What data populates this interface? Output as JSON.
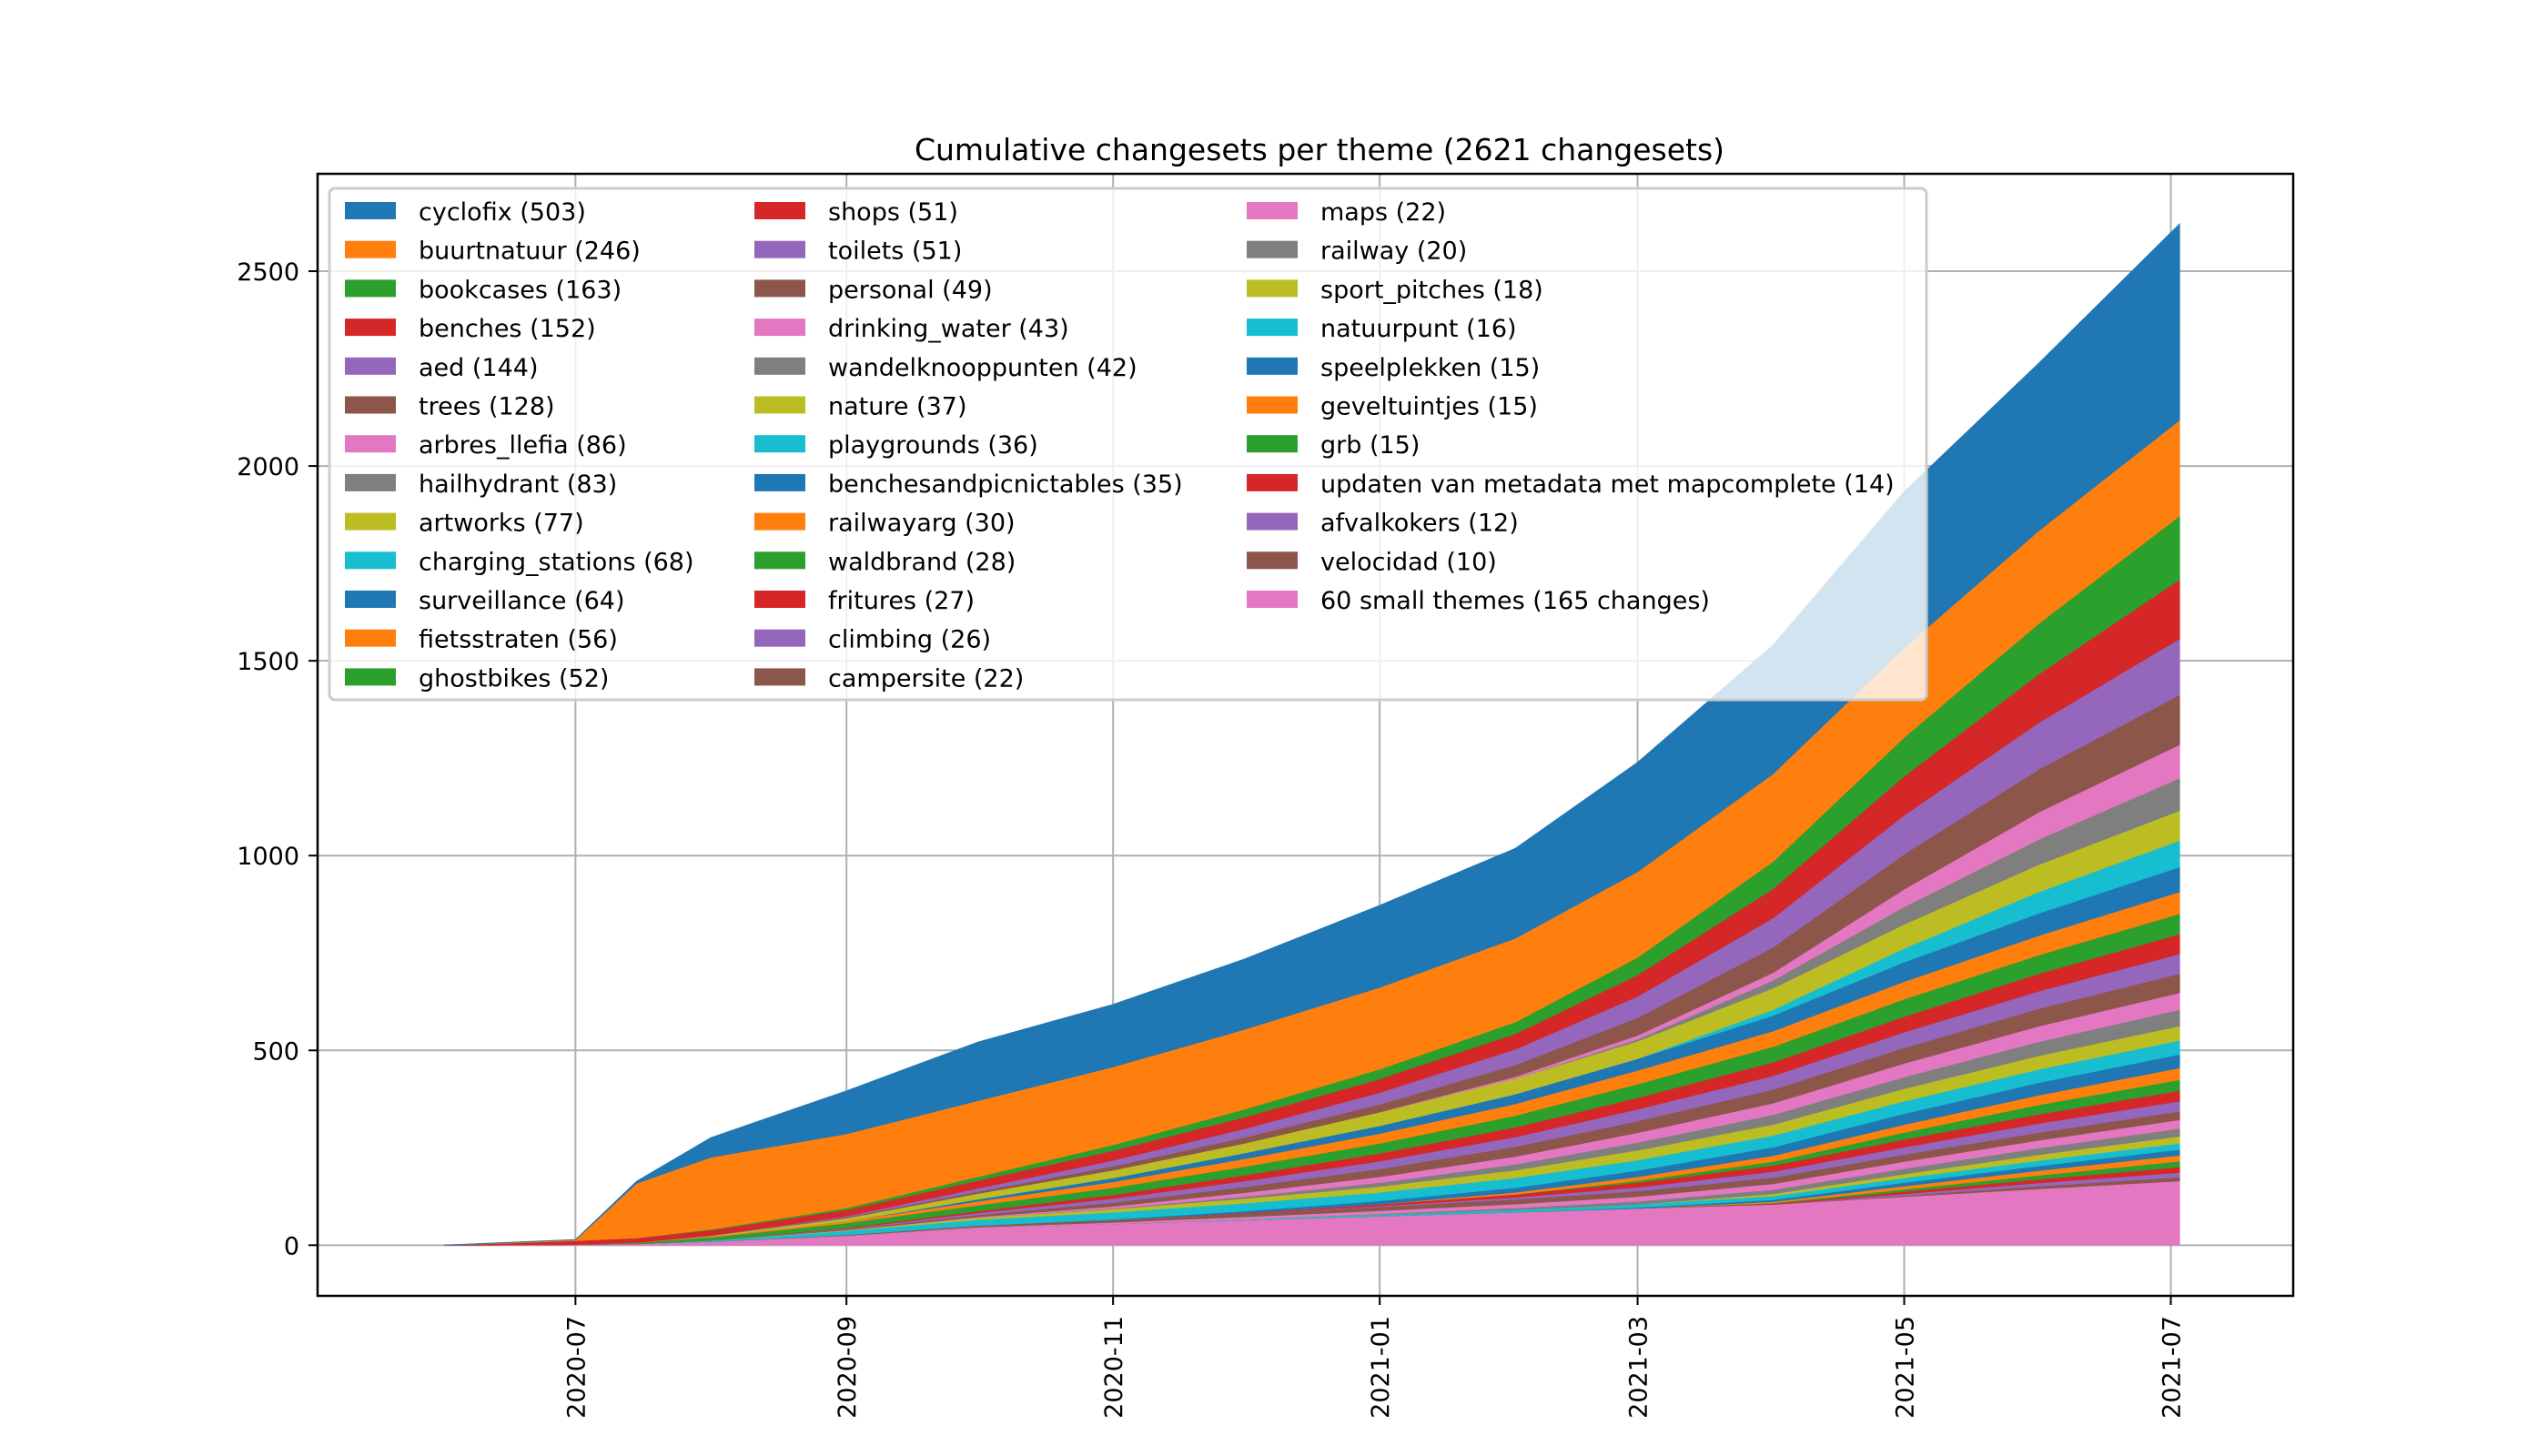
{
  "chart_data": {
    "type": "area",
    "stacked": true,
    "title": "Cumulative changesets per theme (2621 changesets)",
    "xlabel": "",
    "ylabel": "",
    "ylim": [
      -130,
      2750
    ],
    "xlim": [
      "2020-05-03",
      "2021-07-29"
    ],
    "grid": true,
    "legend_position": "top-left",
    "legend_columns": 3,
    "yticks": [
      0,
      500,
      1000,
      1500,
      2000,
      2500
    ],
    "ytick_labels": [
      "0",
      "500",
      "1000",
      "1500",
      "2000",
      "2500"
    ],
    "xticks": [
      "2020-07-01",
      "2020-09-01",
      "2020-11-01",
      "2021-01-01",
      "2021-03-01",
      "2021-05-01",
      "2021-07-01"
    ],
    "xtick_labels": [
      "2020-07",
      "2020-09",
      "2020-11",
      "2021-01",
      "2021-03",
      "2021-05",
      "2021-07"
    ],
    "x": [
      "2020-06-01",
      "2020-07-01",
      "2020-07-15",
      "2020-08-01",
      "2020-09-01",
      "2020-10-01",
      "2020-11-01",
      "2020-12-01",
      "2021-01-01",
      "2021-02-01",
      "2021-03-01",
      "2021-04-01",
      "2021-05-01",
      "2021-06-01",
      "2021-07-03"
    ],
    "series": [
      {
        "name": "cyclofix",
        "label": "cyclofix (503)",
        "color": "#1f77b4",
        "values": [
          0,
          0,
          5,
          50,
          110,
          150,
          160,
          180,
          210,
          230,
          280,
          330,
          400,
          430,
          503
        ]
      },
      {
        "name": "buurtnatuur",
        "label": "buurtnatuur (246)",
        "color": "#ff7f0e",
        "values": [
          0,
          2,
          140,
          185,
          190,
          195,
          200,
          205,
          210,
          215,
          220,
          225,
          230,
          238,
          246
        ]
      },
      {
        "name": "bookcases",
        "label": "bookcases (163)",
        "color": "#2ca02c",
        "values": [
          0,
          0,
          0,
          2,
          5,
          10,
          15,
          20,
          25,
          30,
          45,
          70,
          100,
          130,
          163
        ]
      },
      {
        "name": "benches",
        "label": "benches (152)",
        "color": "#d62728",
        "values": [
          0,
          10,
          12,
          14,
          16,
          20,
          25,
          30,
          35,
          40,
          55,
          75,
          100,
          125,
          152
        ]
      },
      {
        "name": "aed",
        "label": "aed (144)",
        "color": "#9467bd",
        "values": [
          0,
          0,
          0,
          0,
          3,
          8,
          15,
          22,
          30,
          40,
          55,
          75,
          100,
          120,
          144
        ]
      },
      {
        "name": "trees",
        "label": "trees (128)",
        "color": "#8c564b",
        "values": [
          0,
          0,
          0,
          0,
          2,
          5,
          10,
          15,
          20,
          30,
          45,
          65,
          90,
          110,
          128
        ]
      },
      {
        "name": "arbres_llefia",
        "label": "arbres_llefia (86)",
        "color": "#e377c2",
        "values": [
          0,
          0,
          0,
          0,
          0,
          0,
          0,
          0,
          0,
          5,
          10,
          20,
          45,
          70,
          86
        ]
      },
      {
        "name": "hailhydrant",
        "label": "hailhydrant (83)",
        "color": "#7f7f7f",
        "values": [
          0,
          0,
          0,
          0,
          0,
          0,
          0,
          0,
          0,
          0,
          5,
          20,
          45,
          65,
          83
        ]
      },
      {
        "name": "artworks",
        "label": "artworks (77)",
        "color": "#bcbd22",
        "values": [
          0,
          0,
          0,
          2,
          8,
          15,
          20,
          25,
          35,
          40,
          45,
          55,
          62,
          70,
          77
        ]
      },
      {
        "name": "charging_stations",
        "label": "charging_stations (68)",
        "color": "#17becf",
        "values": [
          0,
          0,
          0,
          0,
          0,
          0,
          0,
          0,
          0,
          0,
          0,
          15,
          35,
          55,
          68
        ]
      },
      {
        "name": "surveillance",
        "label": "surveillance (64)",
        "color": "#1f77b4",
        "values": [
          0,
          0,
          0,
          0,
          0,
          5,
          10,
          15,
          20,
          25,
          30,
          40,
          50,
          57,
          64
        ]
      },
      {
        "name": "fietsstraten",
        "label": "fietsstraten (56)",
        "color": "#ff7f0e",
        "values": [
          0,
          0,
          0,
          2,
          5,
          10,
          15,
          20,
          25,
          30,
          35,
          40,
          45,
          50,
          56
        ]
      },
      {
        "name": "ghostbikes",
        "label": "ghostbikes (52)",
        "color": "#2ca02c",
        "values": [
          0,
          0,
          3,
          8,
          12,
          15,
          18,
          22,
          26,
          30,
          35,
          40,
          45,
          48,
          52
        ]
      },
      {
        "name": "shops",
        "label": "shops (51)",
        "color": "#d62728",
        "values": [
          0,
          0,
          0,
          0,
          2,
          5,
          10,
          15,
          20,
          25,
          30,
          35,
          40,
          45,
          51
        ]
      },
      {
        "name": "toilets",
        "label": "toilets (51)",
        "color": "#9467bd",
        "values": [
          0,
          0,
          0,
          0,
          2,
          5,
          10,
          15,
          20,
          25,
          30,
          35,
          40,
          45,
          51
        ]
      },
      {
        "name": "personal",
        "label": "personal (49)",
        "color": "#8c564b",
        "values": [
          0,
          0,
          0,
          0,
          2,
          5,
          10,
          15,
          20,
          25,
          30,
          35,
          40,
          45,
          49
        ]
      },
      {
        "name": "drinking_water",
        "label": "drinking_water (43)",
        "color": "#e377c2",
        "values": [
          0,
          0,
          0,
          0,
          0,
          2,
          5,
          10,
          15,
          20,
          25,
          30,
          35,
          40,
          43
        ]
      },
      {
        "name": "wandelknooppunten",
        "label": "wandelknooppunten (42)",
        "color": "#7f7f7f",
        "values": [
          0,
          0,
          0,
          0,
          0,
          0,
          2,
          5,
          10,
          15,
          20,
          25,
          30,
          36,
          42
        ]
      },
      {
        "name": "nature",
        "label": "nature (37)",
        "color": "#bcbd22",
        "values": [
          0,
          0,
          0,
          0,
          2,
          5,
          8,
          12,
          15,
          20,
          25,
          28,
          32,
          35,
          37
        ]
      },
      {
        "name": "playgrounds",
        "label": "playgrounds (36)",
        "color": "#17becf",
        "values": [
          0,
          0,
          0,
          3,
          10,
          15,
          18,
          20,
          22,
          25,
          27,
          30,
          32,
          34,
          36
        ]
      },
      {
        "name": "benchesandpicnictables",
        "label": "benchesandpicnictables (35)",
        "color": "#1f77b4",
        "values": [
          0,
          0,
          0,
          0,
          0,
          0,
          2,
          5,
          8,
          12,
          16,
          22,
          28,
          32,
          35
        ]
      },
      {
        "name": "railwayarg",
        "label": "railwayarg (30)",
        "color": "#ff7f0e",
        "values": [
          0,
          0,
          0,
          0,
          0,
          0,
          0,
          0,
          0,
          5,
          10,
          15,
          20,
          25,
          30
        ]
      },
      {
        "name": "waldbrand",
        "label": "waldbrand (28)",
        "color": "#2ca02c",
        "values": [
          0,
          0,
          0,
          0,
          0,
          0,
          0,
          0,
          0,
          0,
          5,
          10,
          18,
          24,
          28
        ]
      },
      {
        "name": "fritures",
        "label": "fritures (27)",
        "color": "#d62728",
        "values": [
          0,
          0,
          0,
          0,
          0,
          0,
          0,
          2,
          5,
          8,
          12,
          16,
          20,
          24,
          27
        ]
      },
      {
        "name": "climbing",
        "label": "climbing (26)",
        "color": "#9467bd",
        "values": [
          0,
          0,
          0,
          0,
          0,
          0,
          0,
          0,
          2,
          5,
          10,
          15,
          19,
          23,
          26
        ]
      },
      {
        "name": "campersite",
        "label": "campersite (22)",
        "color": "#8c564b",
        "values": [
          0,
          0,
          0,
          0,
          2,
          4,
          6,
          8,
          10,
          12,
          14,
          16,
          18,
          20,
          22
        ]
      },
      {
        "name": "maps",
        "label": "maps (22)",
        "color": "#e377c2",
        "values": [
          0,
          0,
          0,
          0,
          0,
          2,
          4,
          6,
          8,
          10,
          12,
          15,
          18,
          20,
          22
        ]
      },
      {
        "name": "railway",
        "label": "railway (20)",
        "color": "#7f7f7f",
        "values": [
          0,
          0,
          0,
          0,
          0,
          0,
          0,
          0,
          2,
          5,
          8,
          11,
          14,
          17,
          20
        ]
      },
      {
        "name": "sport_pitches",
        "label": "sport_pitches (18)",
        "color": "#bcbd22",
        "values": [
          0,
          0,
          0,
          0,
          0,
          0,
          0,
          0,
          0,
          0,
          0,
          5,
          10,
          15,
          18
        ]
      },
      {
        "name": "natuurpunt",
        "label": "natuurpunt (16)",
        "color": "#17becf",
        "values": [
          0,
          0,
          0,
          0,
          0,
          0,
          0,
          2,
          4,
          6,
          8,
          10,
          12,
          14,
          16
        ]
      },
      {
        "name": "speelplekken",
        "label": "speelplekken (15)",
        "color": "#1f77b4",
        "values": [
          0,
          0,
          0,
          0,
          0,
          0,
          0,
          0,
          0,
          0,
          2,
          5,
          9,
          12,
          15
        ]
      },
      {
        "name": "geveltuintjes",
        "label": "geveltuintjes (15)",
        "color": "#ff7f0e",
        "values": [
          0,
          0,
          0,
          0,
          0,
          0,
          0,
          0,
          0,
          0,
          0,
          3,
          8,
          12,
          15
        ]
      },
      {
        "name": "grb",
        "label": "grb (15)",
        "color": "#2ca02c",
        "values": [
          0,
          0,
          0,
          0,
          0,
          0,
          0,
          0,
          0,
          0,
          0,
          2,
          6,
          10,
          15
        ]
      },
      {
        "name": "updaten van metadata met mapcomplete",
        "label": "updaten van metadata met mapcomplete (14)",
        "color": "#d62728",
        "values": [
          0,
          0,
          0,
          0,
          0,
          0,
          0,
          0,
          0,
          0,
          0,
          2,
          6,
          10,
          14
        ]
      },
      {
        "name": "afvalkokers",
        "label": "afvalkokers (12)",
        "color": "#9467bd",
        "values": [
          0,
          0,
          0,
          0,
          0,
          0,
          0,
          0,
          0,
          0,
          0,
          0,
          4,
          8,
          12
        ]
      },
      {
        "name": "velocidad",
        "label": "velocidad (10)",
        "color": "#8c564b",
        "values": [
          0,
          0,
          0,
          0,
          0,
          0,
          0,
          0,
          0,
          0,
          0,
          0,
          3,
          7,
          10
        ]
      },
      {
        "name": "60 small themes",
        "label": "60 small themes (165 changes)",
        "color": "#e377c2",
        "values": [
          0,
          2,
          4,
          10,
          25,
          45,
          55,
          65,
          75,
          85,
          95,
          105,
          125,
          145,
          165
        ]
      }
    ]
  }
}
